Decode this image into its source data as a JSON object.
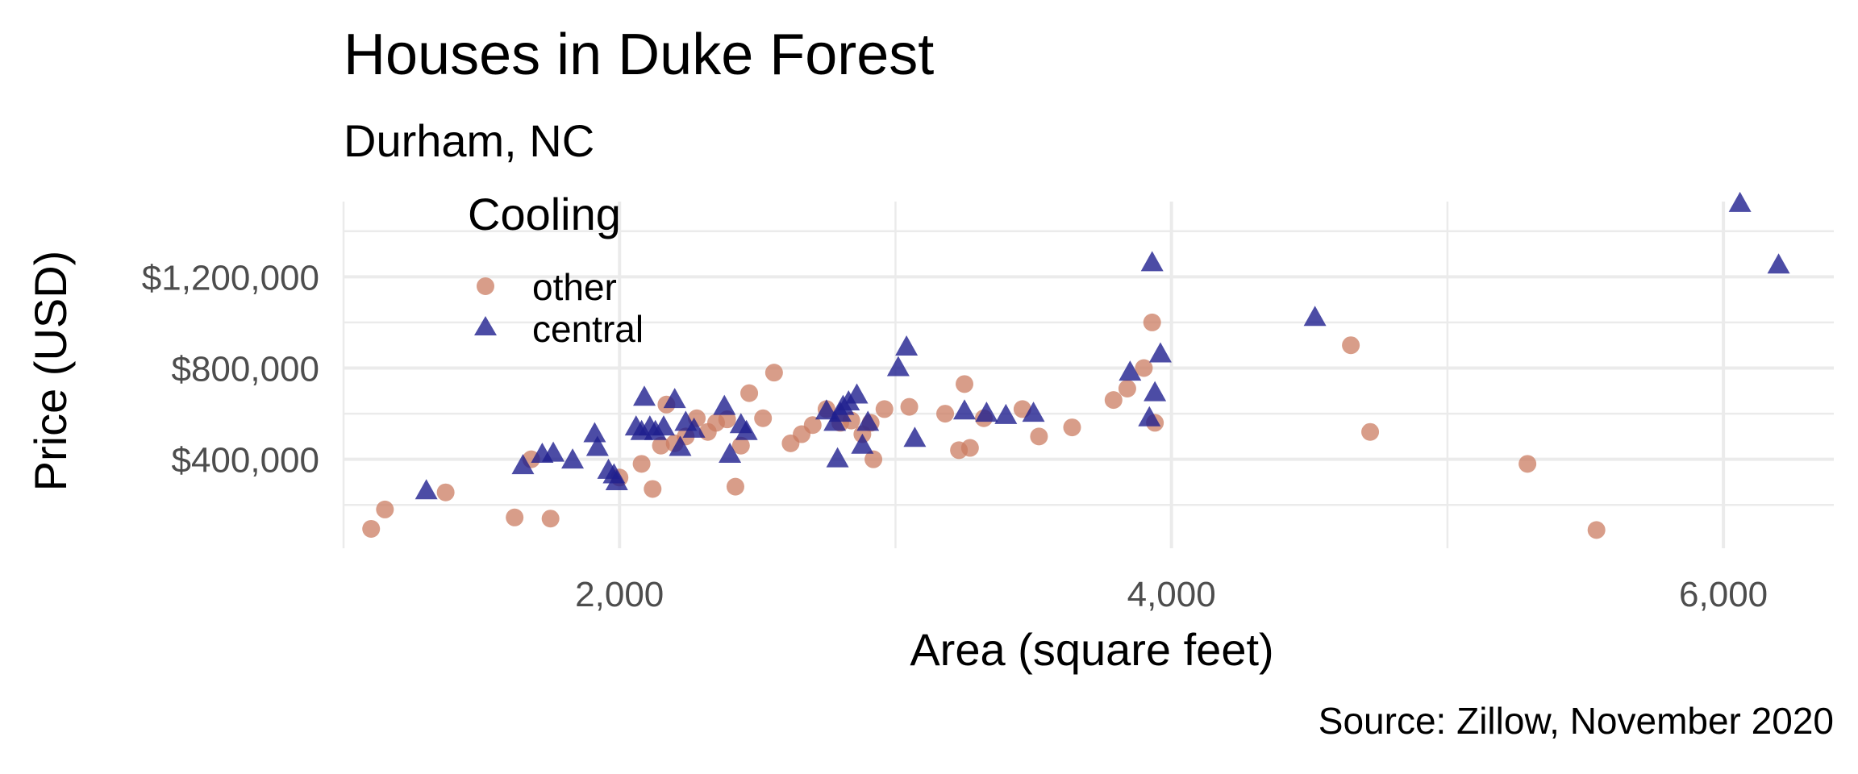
{
  "chart_data": {
    "type": "scatter",
    "title": "Houses in Duke Forest",
    "subtitle": "Durham, NC",
    "caption": "Source: Zillow, November 2020",
    "xlabel": "Area (square feet)",
    "ylabel": "Price (USD)",
    "xlim": [
      1000,
      6400
    ],
    "ylim": [
      10000,
      1530000
    ],
    "x_ticks": [
      2000,
      4000,
      6000
    ],
    "x_tick_labels": [
      "2,000",
      "4,000",
      "6,000"
    ],
    "y_ticks": [
      400000,
      800000,
      1200000
    ],
    "y_tick_labels": [
      "$400,000",
      "$800,000",
      "$1,200,000"
    ],
    "grid": true,
    "legend": {
      "title": "Cooling",
      "position": "top-left"
    },
    "series": [
      {
        "name": "other",
        "marker": "circle",
        "color": "#cb7c61",
        "points": [
          [
            1100,
            95000
          ],
          [
            1150,
            180000
          ],
          [
            1370,
            255000
          ],
          [
            1620,
            145000
          ],
          [
            1680,
            400000
          ],
          [
            1750,
            140000
          ],
          [
            2000,
            320000
          ],
          [
            2080,
            380000
          ],
          [
            2120,
            270000
          ],
          [
            2150,
            460000
          ],
          [
            2170,
            640000
          ],
          [
            2200,
            470000
          ],
          [
            2240,
            500000
          ],
          [
            2280,
            580000
          ],
          [
            2320,
            520000
          ],
          [
            2350,
            560000
          ],
          [
            2390,
            575000
          ],
          [
            2420,
            280000
          ],
          [
            2440,
            460000
          ],
          [
            2470,
            690000
          ],
          [
            2520,
            580000
          ],
          [
            2560,
            780000
          ],
          [
            2620,
            470000
          ],
          [
            2660,
            510000
          ],
          [
            2700,
            550000
          ],
          [
            2750,
            620000
          ],
          [
            2800,
            560000
          ],
          [
            2840,
            570000
          ],
          [
            2880,
            510000
          ],
          [
            2910,
            560000
          ],
          [
            2920,
            400000
          ],
          [
            2960,
            620000
          ],
          [
            3050,
            630000
          ],
          [
            3180,
            600000
          ],
          [
            3230,
            440000
          ],
          [
            3250,
            730000
          ],
          [
            3270,
            450000
          ],
          [
            3320,
            580000
          ],
          [
            3460,
            620000
          ],
          [
            3520,
            500000
          ],
          [
            3640,
            540000
          ],
          [
            3790,
            660000
          ],
          [
            3840,
            710000
          ],
          [
            3900,
            800000
          ],
          [
            3930,
            1000000
          ],
          [
            3940,
            560000
          ],
          [
            4650,
            900000
          ],
          [
            4720,
            520000
          ],
          [
            5290,
            380000
          ],
          [
            5540,
            90000
          ]
        ]
      },
      {
        "name": "central",
        "marker": "triangle",
        "color": "#1f1f8f",
        "points": [
          [
            1300,
            260000
          ],
          [
            1650,
            370000
          ],
          [
            1720,
            420000
          ],
          [
            1760,
            425000
          ],
          [
            1830,
            395000
          ],
          [
            1910,
            510000
          ],
          [
            1920,
            450000
          ],
          [
            1960,
            350000
          ],
          [
            1980,
            330000
          ],
          [
            1990,
            300000
          ],
          [
            2060,
            540000
          ],
          [
            2080,
            520000
          ],
          [
            2090,
            670000
          ],
          [
            2110,
            540000
          ],
          [
            2130,
            520000
          ],
          [
            2160,
            540000
          ],
          [
            2200,
            660000
          ],
          [
            2220,
            450000
          ],
          [
            2240,
            560000
          ],
          [
            2270,
            530000
          ],
          [
            2380,
            630000
          ],
          [
            2400,
            420000
          ],
          [
            2440,
            550000
          ],
          [
            2460,
            520000
          ],
          [
            2750,
            610000
          ],
          [
            2780,
            560000
          ],
          [
            2790,
            400000
          ],
          [
            2800,
            600000
          ],
          [
            2810,
            630000
          ],
          [
            2830,
            650000
          ],
          [
            2860,
            680000
          ],
          [
            2880,
            460000
          ],
          [
            2900,
            560000
          ],
          [
            3010,
            800000
          ],
          [
            3040,
            890000
          ],
          [
            3070,
            490000
          ],
          [
            3250,
            610000
          ],
          [
            3330,
            600000
          ],
          [
            3400,
            590000
          ],
          [
            3500,
            600000
          ],
          [
            3850,
            780000
          ],
          [
            3920,
            580000
          ],
          [
            3930,
            1260000
          ],
          [
            3940,
            690000
          ],
          [
            3960,
            860000
          ],
          [
            4520,
            1020000
          ],
          [
            6060,
            1520000
          ],
          [
            6200,
            1250000
          ]
        ]
      }
    ]
  }
}
